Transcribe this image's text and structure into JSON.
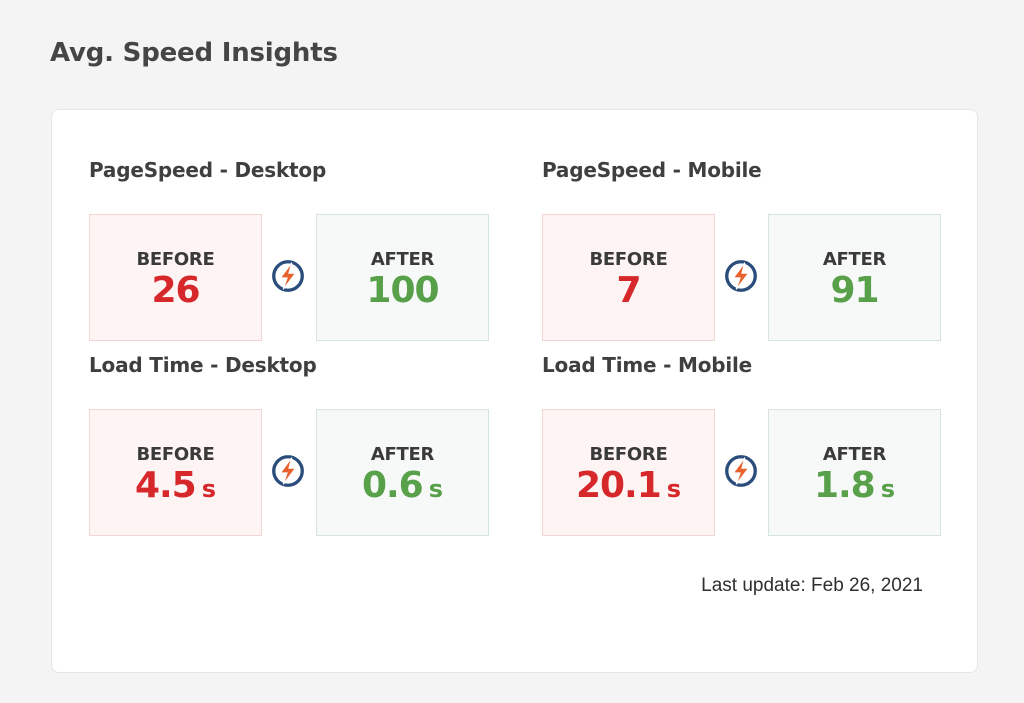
{
  "page": {
    "title": "Avg. Speed Insights"
  },
  "sections": {
    "pagespeed_desktop": {
      "title": "PageSpeed - Desktop",
      "before_label": "BEFORE",
      "before_value": "26",
      "before_unit": "",
      "after_label": "AFTER",
      "after_value": "100",
      "after_unit": ""
    },
    "pagespeed_mobile": {
      "title": "PageSpeed - Mobile",
      "before_label": "BEFORE",
      "before_value": "7",
      "before_unit": "",
      "after_label": "AFTER",
      "after_value": "91",
      "after_unit": ""
    },
    "loadtime_desktop": {
      "title": "Load Time - Desktop",
      "before_label": "BEFORE",
      "before_value": "4.5",
      "before_unit": "s",
      "after_label": "AFTER",
      "after_value": "0.6",
      "after_unit": "s"
    },
    "loadtime_mobile": {
      "title": "Load Time - Mobile",
      "before_label": "BEFORE",
      "before_value": "20.1",
      "before_unit": "s",
      "after_label": "AFTER",
      "after_value": "1.8",
      "after_unit": "s"
    }
  },
  "footer": {
    "last_update": "Last update: Feb 26, 2021"
  },
  "colors": {
    "before_value": "#d6282b",
    "after_value": "#58a04a",
    "bolt_ring": "#2b4d7c",
    "bolt_fill": "#e8612c"
  },
  "icons": {
    "speed": "lightning-bolt-icon"
  }
}
